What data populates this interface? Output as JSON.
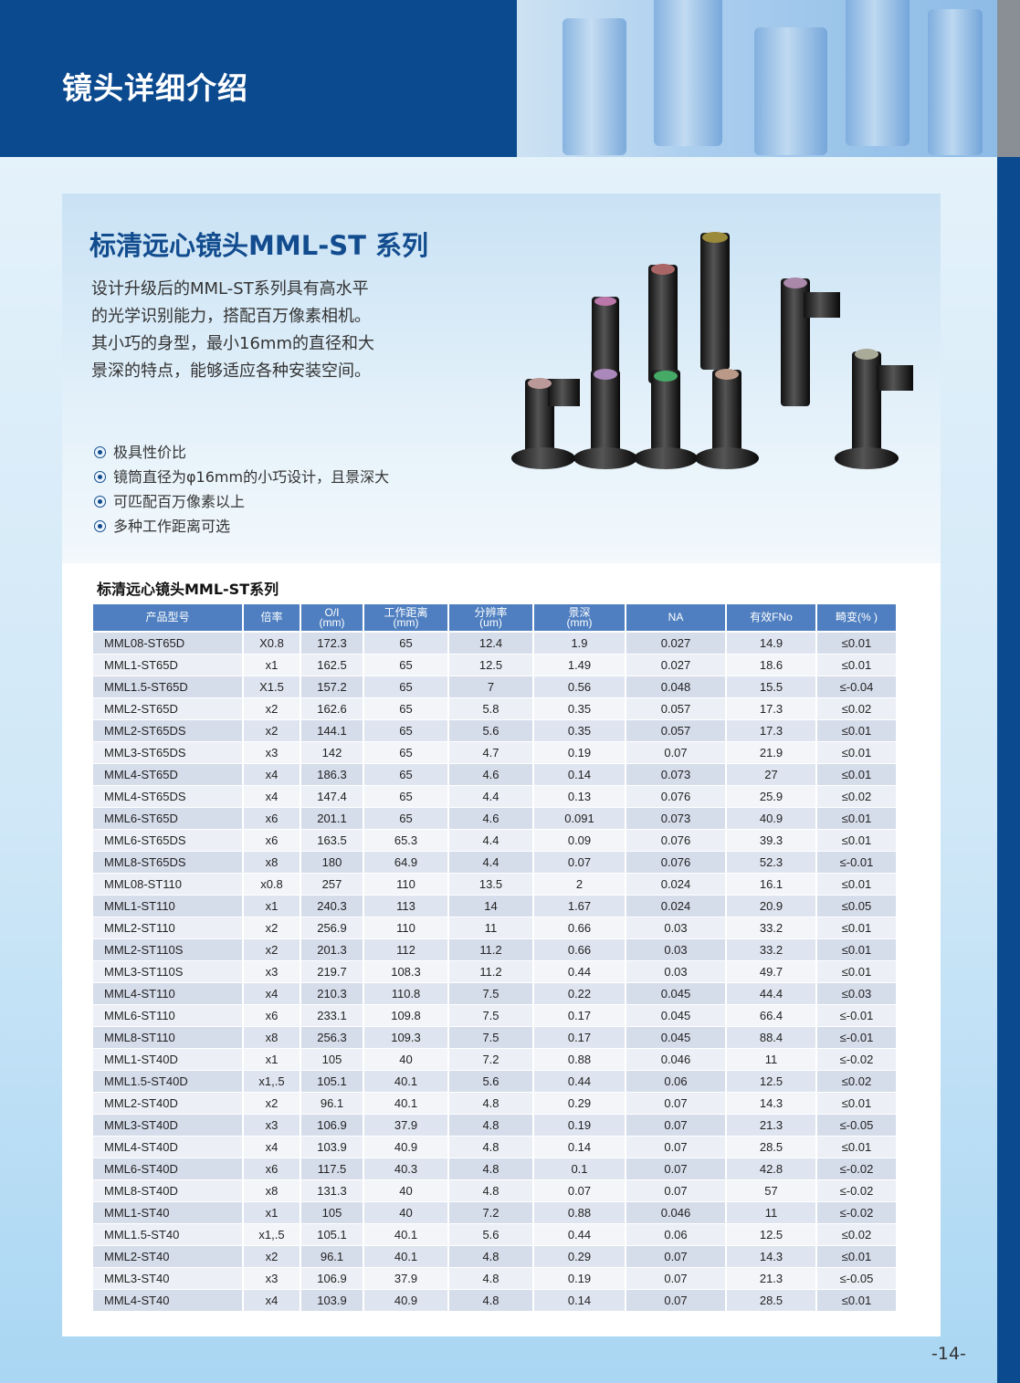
{
  "header": {
    "title": "镜头详细介绍"
  },
  "hero": {
    "series_title": "标清远心镜头MML-ST 系列",
    "description": [
      "设计升级后的MML-ST系列具有高水平",
      "的光学识别能力，搭配百万像素相机。",
      "其小巧的身型，最小16mm的直径和大",
      "景深的特点，能够适应各种安装空间。"
    ],
    "features": [
      "极具性价比",
      "镜筒直径为φ16mm的小巧设计，且景深大",
      "可匹配百万像素以上",
      "多种工作距离可选"
    ]
  },
  "table": {
    "title": "标清远心镜头MML-ST系列",
    "headers": [
      [
        "产品型号",
        ""
      ],
      [
        "倍率",
        ""
      ],
      [
        "O/I",
        "(mm)"
      ],
      [
        "工作距离",
        "(mm)"
      ],
      [
        "分辨率",
        "(um)"
      ],
      [
        "景深",
        "(mm)"
      ],
      [
        "NA",
        ""
      ],
      [
        "有效FNo",
        ""
      ],
      [
        "畸变(% )",
        ""
      ]
    ],
    "rows": [
      [
        "MML08-ST65D",
        "X0.8",
        "172.3",
        "65",
        "12.4",
        "1.9",
        "0.027",
        "14.9",
        "≤0.01"
      ],
      [
        "MML1-ST65D",
        "x1",
        "162.5",
        "65",
        "12.5",
        "1.49",
        "0.027",
        "18.6",
        "≤0.01"
      ],
      [
        "MML1.5-ST65D",
        "X1.5",
        "157.2",
        "65",
        "7",
        "0.56",
        "0.048",
        "15.5",
        "≤-0.04"
      ],
      [
        "MML2-ST65D",
        "x2",
        "162.6",
        "65",
        "5.8",
        "0.35",
        "0.057",
        "17.3",
        "≤0.02"
      ],
      [
        "MML2-ST65DS",
        "x2",
        "144.1",
        "65",
        "5.6",
        "0.35",
        "0.057",
        "17.3",
        "≤0.01"
      ],
      [
        "MML3-ST65DS",
        "x3",
        "142",
        "65",
        "4.7",
        "0.19",
        "0.07",
        "21.9",
        "≤0.01"
      ],
      [
        "MML4-ST65D",
        "x4",
        "186.3",
        "65",
        "4.6",
        "0.14",
        "0.073",
        "27",
        "≤0.01"
      ],
      [
        "MML4-ST65DS",
        "x4",
        "147.4",
        "65",
        "4.4",
        "0.13",
        "0.076",
        "25.9",
        "≤0.02"
      ],
      [
        "MML6-ST65D",
        "x6",
        "201.1",
        "65",
        "4.6",
        "0.091",
        "0.073",
        "40.9",
        "≤0.01"
      ],
      [
        "MML6-ST65DS",
        "x6",
        "163.5",
        "65.3",
        "4.4",
        "0.09",
        "0.076",
        "39.3",
        "≤0.01"
      ],
      [
        "MML8-ST65DS",
        "x8",
        "180",
        "64.9",
        "4.4",
        "0.07",
        "0.076",
        "52.3",
        "≤-0.01"
      ],
      [
        "MML08-ST110",
        "x0.8",
        "257",
        "110",
        "13.5",
        "2",
        "0.024",
        "16.1",
        "≤0.01"
      ],
      [
        "MML1-ST110",
        "x1",
        "240.3",
        "113",
        "14",
        "1.67",
        "0.024",
        "20.9",
        "≤0.05"
      ],
      [
        "MML2-ST110",
        "x2",
        "256.9",
        "110",
        "11",
        "0.66",
        "0.03",
        "33.2",
        "≤0.01"
      ],
      [
        "MML2-ST110S",
        "x2",
        "201.3",
        "112",
        "11.2",
        "0.66",
        "0.03",
        "33.2",
        "≤0.01"
      ],
      [
        "MML3-ST110S",
        "x3",
        "219.7",
        "108.3",
        "11.2",
        "0.44",
        "0.03",
        "49.7",
        "≤0.01"
      ],
      [
        "MML4-ST110",
        "x4",
        "210.3",
        "110.8",
        "7.5",
        "0.22",
        "0.045",
        "44.4",
        "≤0.03"
      ],
      [
        "MML6-ST110",
        "x6",
        "233.1",
        "109.8",
        "7.5",
        "0.17",
        "0.045",
        "66.4",
        "≤-0.01"
      ],
      [
        "MML8-ST110",
        "x8",
        "256.3",
        "109.3",
        "7.5",
        "0.17",
        "0.045",
        "88.4",
        "≤-0.01"
      ],
      [
        "MML1-ST40D",
        "x1",
        "105",
        "40",
        "7.2",
        "0.88",
        "0.046",
        "11",
        "≤-0.02"
      ],
      [
        "MML1.5-ST40D",
        "x1,.5",
        "105.1",
        "40.1",
        "5.6",
        "0.44",
        "0.06",
        "12.5",
        "≤0.02"
      ],
      [
        "MML2-ST40D",
        "x2",
        "96.1",
        "40.1",
        "4.8",
        "0.29",
        "0.07",
        "14.3",
        "≤0.01"
      ],
      [
        "MML3-ST40D",
        "x3",
        "106.9",
        "37.9",
        "4.8",
        "0.19",
        "0.07",
        "21.3",
        "≤-0.05"
      ],
      [
        "MML4-ST40D",
        "x4",
        "103.9",
        "40.9",
        "4.8",
        "0.14",
        "0.07",
        "28.5",
        "≤0.01"
      ],
      [
        "MML6-ST40D",
        "x6",
        "117.5",
        "40.3",
        "4.8",
        "0.1",
        "0.07",
        "42.8",
        "≤-0.02"
      ],
      [
        "MML8-ST40D",
        "x8",
        "131.3",
        "40",
        "4.8",
        "0.07",
        "0.07",
        "57",
        "≤-0.02"
      ],
      [
        "MML1-ST40",
        "x1",
        "105",
        "40",
        "7.2",
        "0.88",
        "0.046",
        "11",
        "≤-0.02"
      ],
      [
        "MML1.5-ST40",
        "x1,.5",
        "105.1",
        "40.1",
        "5.6",
        "0.44",
        "0.06",
        "12.5",
        "≤0.02"
      ],
      [
        "MML2-ST40",
        "x2",
        "96.1",
        "40.1",
        "4.8",
        "0.29",
        "0.07",
        "14.3",
        "≤0.01"
      ],
      [
        "MML3-ST40",
        "x3",
        "106.9",
        "37.9",
        "4.8",
        "0.19",
        "0.07",
        "21.3",
        "≤-0.05"
      ],
      [
        "MML4-ST40",
        "x4",
        "103.9",
        "40.9",
        "4.8",
        "0.14",
        "0.07",
        "28.5",
        "≤0.01"
      ]
    ]
  },
  "footer": {
    "page_number": "-14-"
  },
  "colors": {
    "brand_blue": "#0b4a8f",
    "header_cell": "#4f7fc0",
    "title_blue": "#124c8e"
  }
}
